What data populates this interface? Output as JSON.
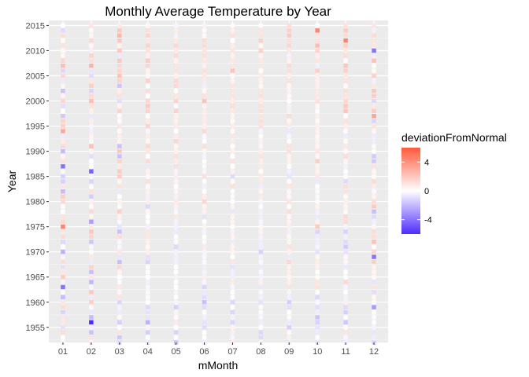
{
  "chart_data": {
    "type": "heatmap",
    "title": "Monthly Average Temperature by Year",
    "xlabel": "mMonth",
    "ylabel": "Year",
    "x_categories": [
      "01",
      "02",
      "03",
      "04",
      "05",
      "06",
      "07",
      "08",
      "09",
      "10",
      "11",
      "12"
    ],
    "y_range": [
      1952,
      2016
    ],
    "y_ticks": [
      1955,
      1960,
      1965,
      1970,
      1975,
      1980,
      1985,
      1990,
      1995,
      2000,
      2005,
      2010,
      2015
    ],
    "y_tick_labels": [
      "1955",
      "1960",
      "1965",
      "1970",
      "1975",
      "1980",
      "1985",
      "1990",
      "1995",
      "2000",
      "2005",
      "2010",
      "2015"
    ],
    "fill_variable": "deviationFromNormal",
    "color_scale": {
      "low": "#4d2cff",
      "mid": "#ffffff",
      "high": "#ff5a3c",
      "midpoint": 0,
      "limits": [
        -6,
        6
      ]
    },
    "legend": {
      "title": "deviationFromNormal",
      "breaks": [
        4,
        0,
        -4
      ],
      "break_labels": [
        "4",
        "0",
        "-4"
      ],
      "position": "right"
    },
    "grid": true,
    "highlights": [
      {
        "month": "02",
        "year": 1956,
        "value": -9
      },
      {
        "month": "02",
        "year": 1986,
        "value": -4.5
      },
      {
        "month": "01",
        "year": 1987,
        "value": -4
      },
      {
        "month": "01",
        "year": 1963,
        "value": -4
      },
      {
        "month": "01",
        "year": 1975,
        "value": 4.5
      },
      {
        "month": "12",
        "year": 2010,
        "value": -4
      },
      {
        "month": "12",
        "year": 1969,
        "value": -4
      },
      {
        "month": "11",
        "year": 2012,
        "value": 4.5
      },
      {
        "month": "10",
        "year": 2014,
        "value": 4.5
      }
    ]
  }
}
